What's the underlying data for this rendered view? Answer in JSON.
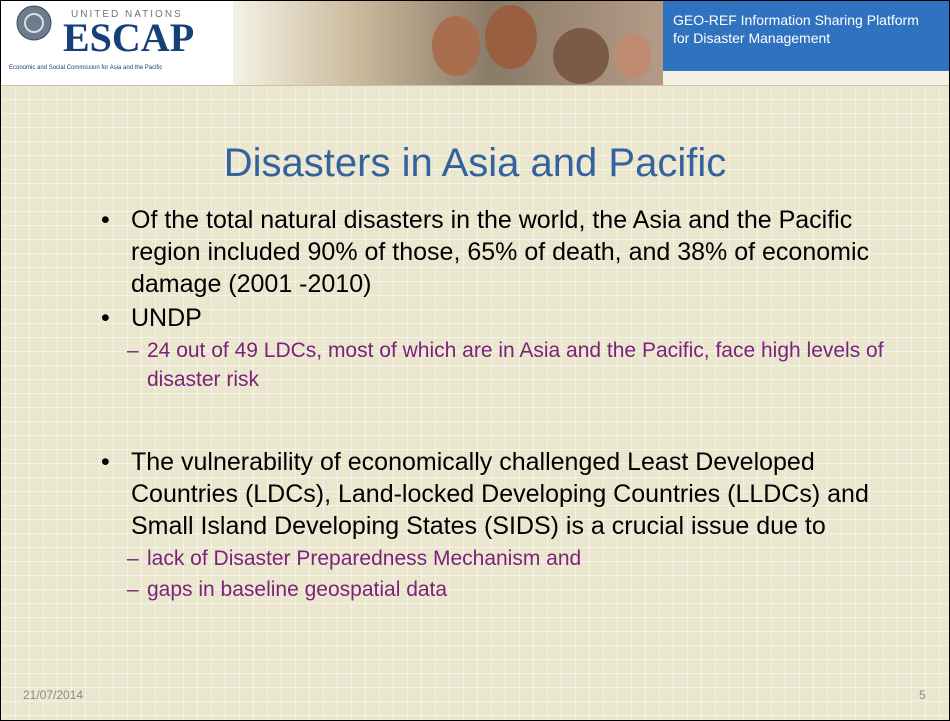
{
  "header": {
    "logo": {
      "org": "UNITED NATIONS",
      "name": "ESCAP",
      "tagline": "Economic and Social Commission for Asia and the Pacific"
    },
    "banner": "GEO-REF Information Sharing Platform for Disaster Management"
  },
  "slide": {
    "title": "Disasters in Asia and Pacific",
    "bullets": [
      {
        "text": "Of the total natural disasters in the world, the Asia and the Pacific region included 90% of those, 65% of death, and 38% of economic damage (2001 -2010)",
        "sub": []
      },
      {
        "text": "UNDP",
        "sub": [
          "24 out of 49 LDCs, most of which are in Asia and the Pacific, face high levels of disaster risk"
        ]
      },
      {
        "text": "The vulnerability of economically challenged Least Developed Countries (LDCs), Land-locked Developing Countries (LLDCs) and Small Island Developing States (SIDS) is a crucial issue due to",
        "sub": [
          "lack of Disaster Preparedness Mechanism and",
          "gaps in baseline geospatial data"
        ]
      }
    ]
  },
  "footer": {
    "date": "21/07/2014",
    "page": "5"
  }
}
